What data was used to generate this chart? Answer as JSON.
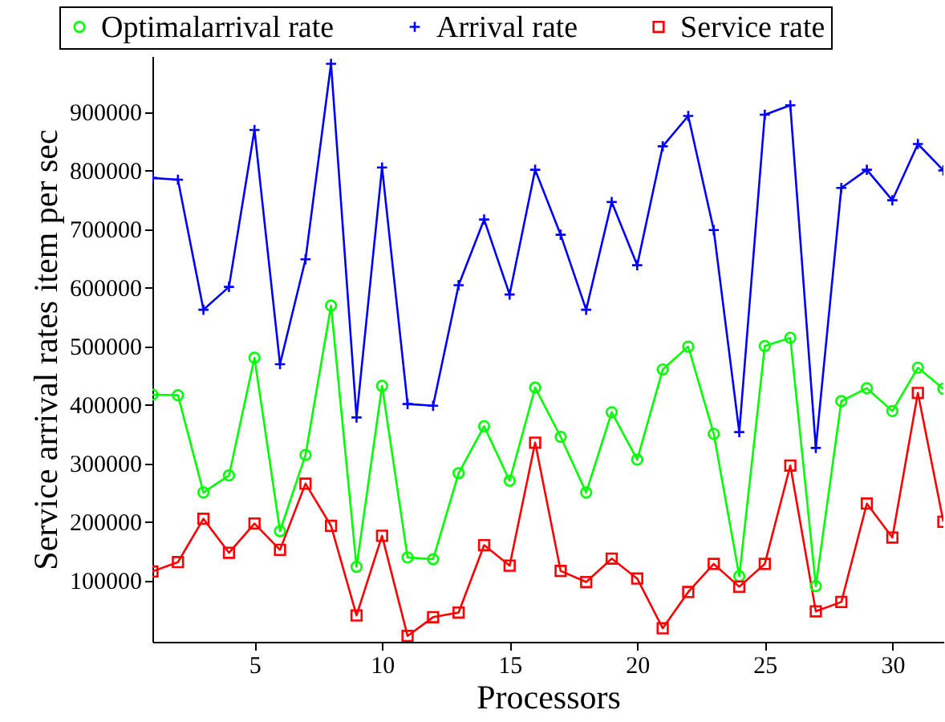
{
  "chart_data": {
    "type": "line",
    "xlabel": "Processors",
    "ylabel": "Service arrival rates item per sec",
    "x": [
      1,
      2,
      3,
      4,
      5,
      6,
      7,
      8,
      9,
      10,
      11,
      12,
      13,
      14,
      15,
      16,
      17,
      18,
      19,
      20,
      21,
      22,
      23,
      24,
      25,
      26,
      27,
      28,
      29,
      30,
      31,
      32
    ],
    "series": [
      {
        "name": "Optimalarrival rate",
        "color": "#00ff00",
        "marker": "circle",
        "values": [
          417000,
          416000,
          250000,
          279000,
          480000,
          184000,
          314000,
          569000,
          123000,
          432000,
          139000,
          136000,
          283000,
          363000,
          270000,
          429000,
          345000,
          250000,
          387000,
          306000,
          460000,
          499000,
          350000,
          107000,
          500000,
          514000,
          90000,
          406000,
          428000,
          389000,
          463000,
          427000
        ]
      },
      {
        "name": "Arrival rate",
        "color": "#0000ff",
        "marker": "cross",
        "values": [
          787000,
          784000,
          562000,
          601000,
          869000,
          469000,
          648000,
          982000,
          378000,
          805000,
          401000,
          398000,
          604000,
          716000,
          588000,
          801000,
          690000,
          562000,
          746000,
          638000,
          841000,
          893000,
          698000,
          353000,
          895000,
          911000,
          326000,
          770000,
          801000,
          749000,
          845000,
          800000
        ]
      },
      {
        "name": "Service rate",
        "color": "#ff0000",
        "marker": "square",
        "values": [
          115000,
          131000,
          205000,
          147000,
          197000,
          152000,
          265000,
          193000,
          40000,
          176000,
          5000,
          37000,
          45000,
          160000,
          125000,
          335000,
          116000,
          97000,
          137000,
          103000,
          18000,
          80000,
          128000,
          89000,
          128000,
          296000,
          47000,
          63000,
          231000,
          173000,
          420000,
          200000
        ]
      }
    ],
    "xlim": [
      1,
      32
    ],
    "ylim": [
      -5000,
      995000
    ],
    "xticks": [
      5,
      10,
      15,
      20,
      25,
      30
    ],
    "yticks": [
      100000,
      200000,
      300000,
      400000,
      500000,
      600000,
      700000,
      800000,
      900000
    ],
    "grid": false,
    "legend": "top"
  }
}
